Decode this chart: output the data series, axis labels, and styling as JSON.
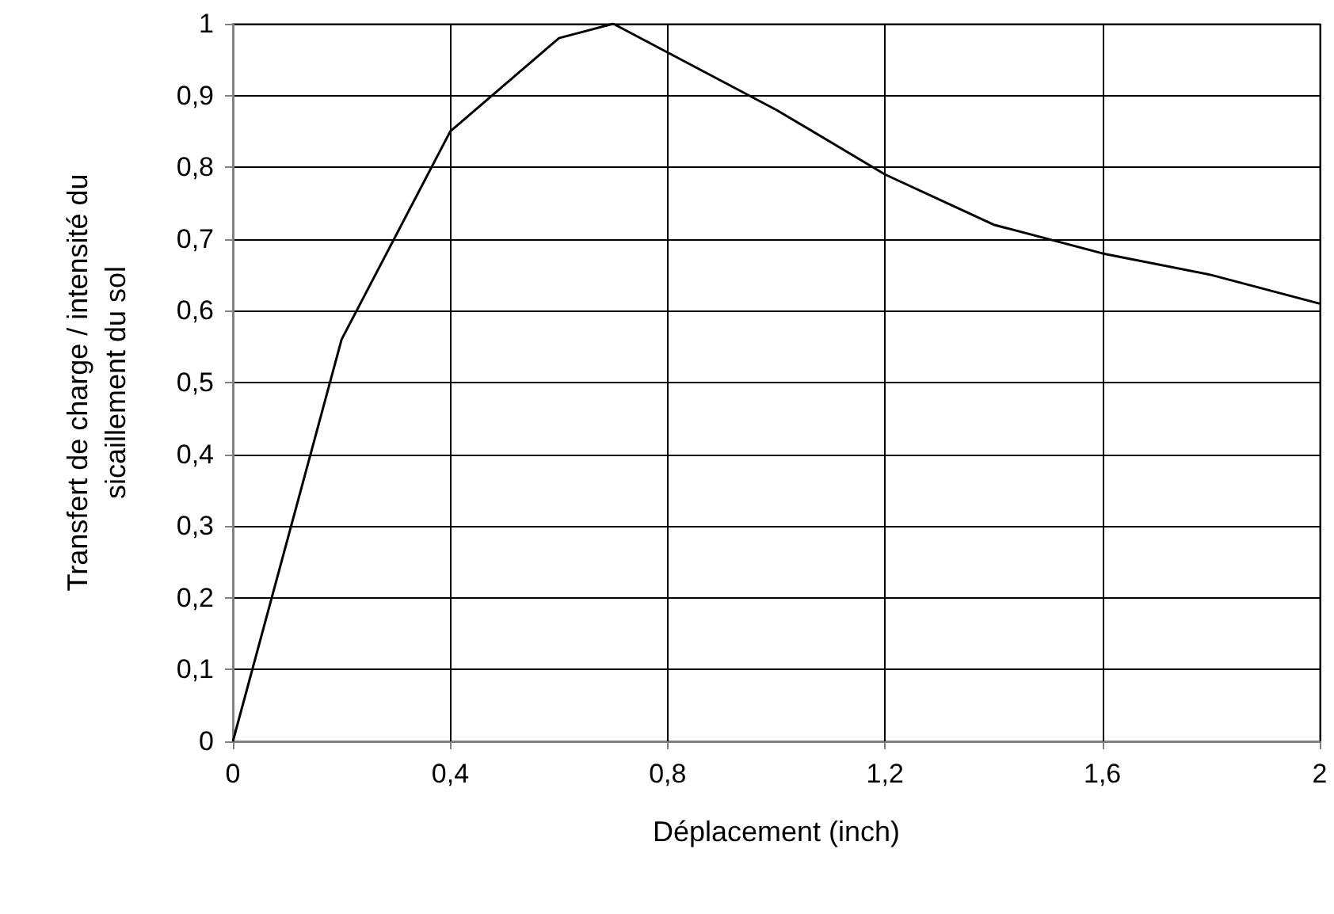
{
  "chart_data": {
    "type": "line",
    "xlabel": "Déplacement (inch)",
    "ylabel": "Transfert de charge / intensité du sicaillement du sol",
    "x": [
      0,
      0.2,
      0.4,
      0.6,
      0.7,
      1.0,
      1.2,
      1.4,
      1.6,
      1.8,
      2.0
    ],
    "series": [
      {
        "color": "#000000",
        "values": [
          0,
          0.56,
          0.85,
          0.98,
          1.0,
          0.88,
          0.79,
          0.72,
          0.68,
          0.65,
          0.61
        ]
      }
    ],
    "xlim": [
      0,
      2
    ],
    "xticks": [
      0,
      {
        "value": 0.4,
        "label": "0,4"
      },
      {
        "value": 0.8,
        "label": "0,8"
      },
      {
        "value": 1.2,
        "label": "1,2"
      },
      {
        "value": 1.6,
        "label": "1,6"
      },
      2
    ],
    "ylim": [
      0,
      1
    ],
    "yticks": [
      0,
      {
        "value": 0.1,
        "label": "0,1"
      },
      {
        "value": 0.2,
        "label": "0,2"
      },
      {
        "value": 0.3,
        "label": "0,3"
      },
      {
        "value": 0.4,
        "label": "0,4"
      },
      {
        "value": 0.5,
        "label": "0,5"
      },
      {
        "value": 0.6,
        "label": "0,6"
      },
      {
        "value": 0.7,
        "label": "0,7"
      },
      {
        "value": 0.8,
        "label": "0,8"
      },
      {
        "value": 0.9,
        "label": "0,9"
      },
      1
    ],
    "grid": true,
    "marker": "none",
    "line_style": "solid"
  }
}
